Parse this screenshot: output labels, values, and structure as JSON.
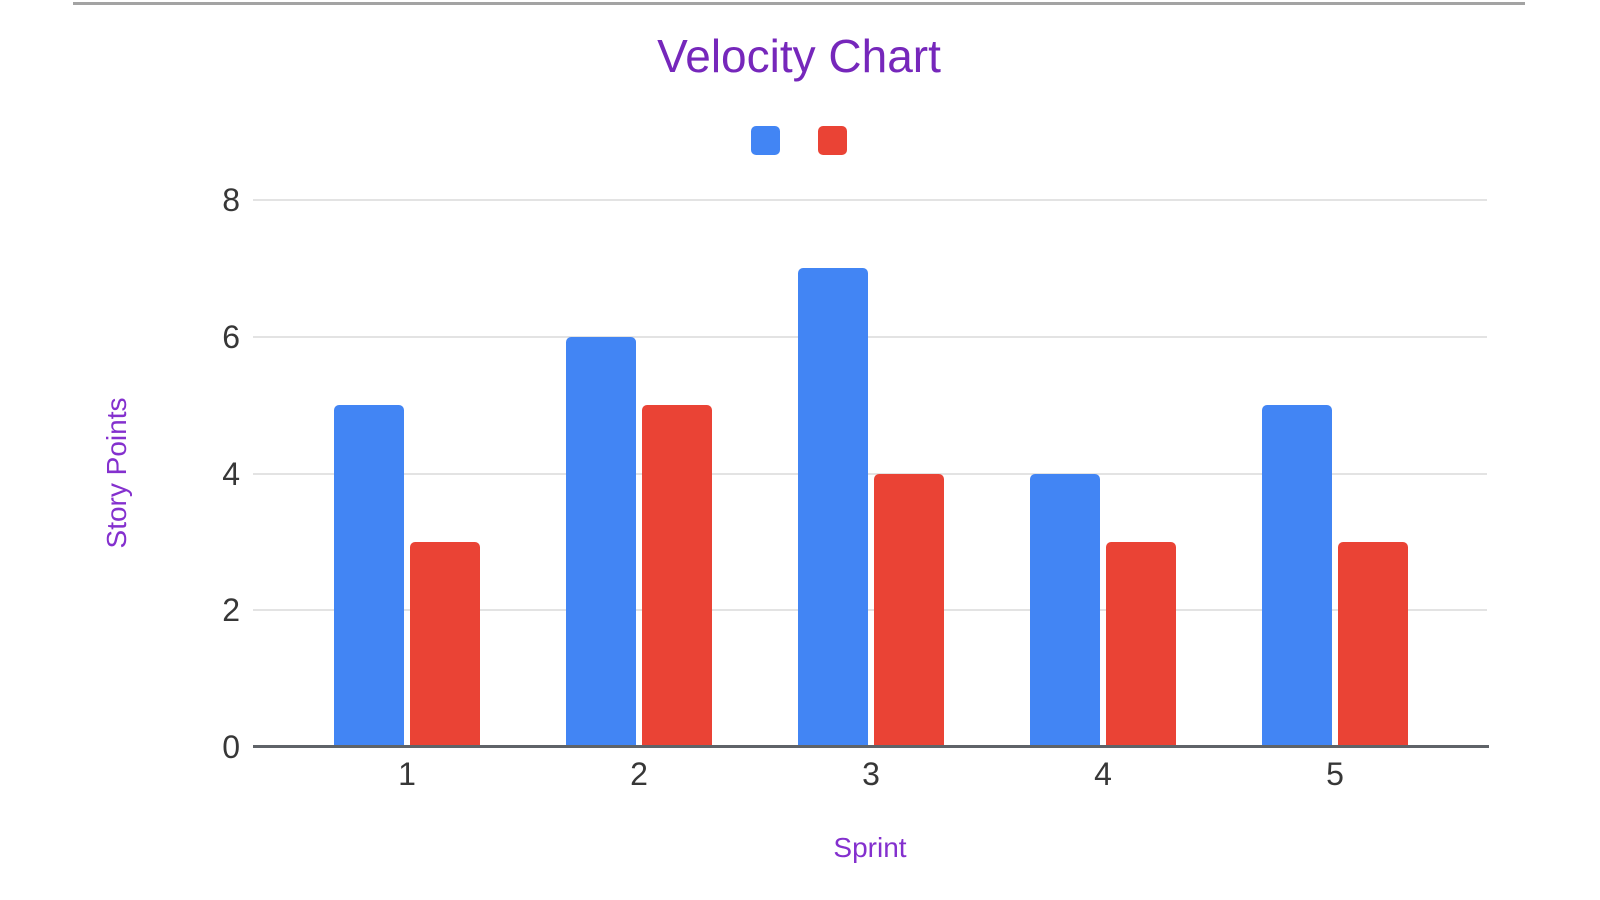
{
  "chart_data": {
    "type": "bar",
    "title": "Velocity Chart",
    "xlabel": "Sprint",
    "ylabel": "Story Points",
    "categories": [
      "1",
      "2",
      "3",
      "4",
      "5"
    ],
    "series": [
      {
        "name": "",
        "color": "#4285f4",
        "values": [
          5,
          6,
          7,
          4,
          5
        ]
      },
      {
        "name": "",
        "color": "#ea4335",
        "values": [
          3,
          5,
          4,
          3,
          3
        ]
      }
    ],
    "ylim": [
      0,
      8
    ],
    "yticks": [
      0,
      2,
      4,
      6,
      8
    ],
    "grid": "horizontal",
    "legend_position": "top-center"
  },
  "colors": {
    "title": "#7627bb",
    "axis_titles": "#8430ce",
    "tick_labels": "#373737",
    "gridline": "#e3e3e3",
    "baseline": "#5f6368",
    "top_border": "#a3a3a3",
    "series_blue": "#4285f4",
    "series_red": "#ea4335"
  }
}
